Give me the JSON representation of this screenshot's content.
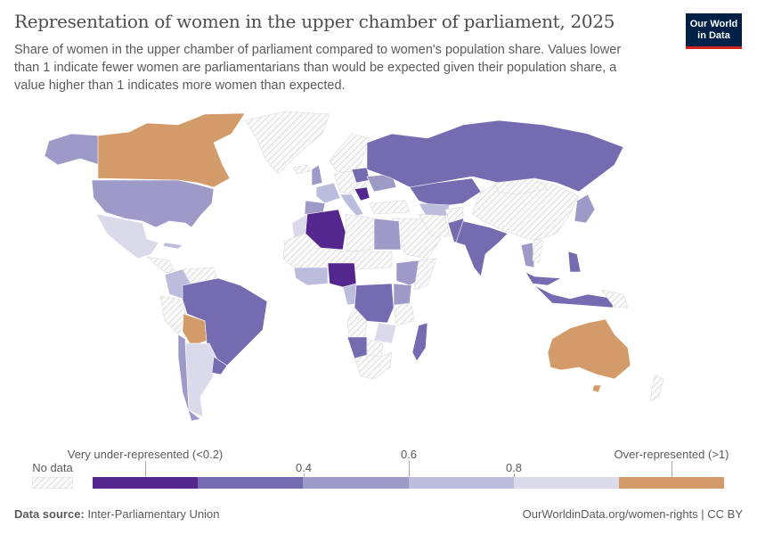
{
  "header": {
    "title": "Representation of women in the upper chamber of parliament, 2025",
    "subtitle": "Share of women in the upper chamber of parliament compared to women's population share. Values lower than 1 indicate fewer women are parliamentarians than would be expected given their population share, a value higher than 1 indicates more women than expected.",
    "logo_line1": "Our World",
    "logo_line2": "in Data"
  },
  "legend": {
    "no_data_label": "No data",
    "low_label": "Very under-represented (<0.2)",
    "high_label": "Over-represented (>1)",
    "ticks": [
      "0.4",
      "0.6",
      "0.8"
    ],
    "bins": [
      {
        "range": "<0.2",
        "color": "#54278f"
      },
      {
        "range": "0.2-0.4",
        "color": "#756bb1"
      },
      {
        "range": "0.4-0.6",
        "color": "#9e9ac8"
      },
      {
        "range": "0.6-0.8",
        "color": "#bcbddc"
      },
      {
        "range": "0.8-1",
        "color": "#dadaeb"
      },
      {
        "range": ">1",
        "color": "#d49b6a"
      }
    ],
    "no_data_color": "#f2f2f2"
  },
  "footer": {
    "source_label": "Data source:",
    "source": "Inter-Parliamentary Union",
    "url": "OurWorldinData.org/women-rights | CC BY"
  }
}
